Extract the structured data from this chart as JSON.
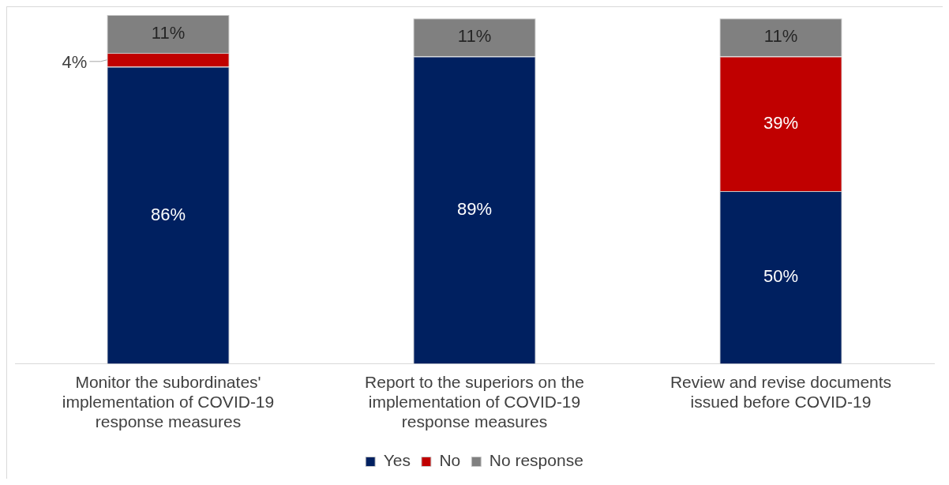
{
  "chart_data": {
    "type": "bar",
    "stacked": true,
    "categories": [
      "Monitor the subordinates' implementation of COVID-19 response measures",
      "Report to the superiors on the implementation of COVID-19 response measures",
      "Review and revise documents issued before COVID-19"
    ],
    "series": [
      {
        "name": "Yes",
        "color": "#002060",
        "values": [
          86,
          89,
          50
        ],
        "value_labels": [
          "86%",
          "89%",
          "50%"
        ]
      },
      {
        "name": "No",
        "color": "#c00000",
        "values": [
          4,
          null,
          39
        ],
        "value_labels": [
          "4%",
          null,
          "39%"
        ]
      },
      {
        "name": "No response",
        "color": "#808080",
        "values": [
          11,
          11,
          11
        ],
        "value_labels": [
          "11%",
          "11%",
          "11%"
        ]
      }
    ],
    "legend": "bottom"
  }
}
